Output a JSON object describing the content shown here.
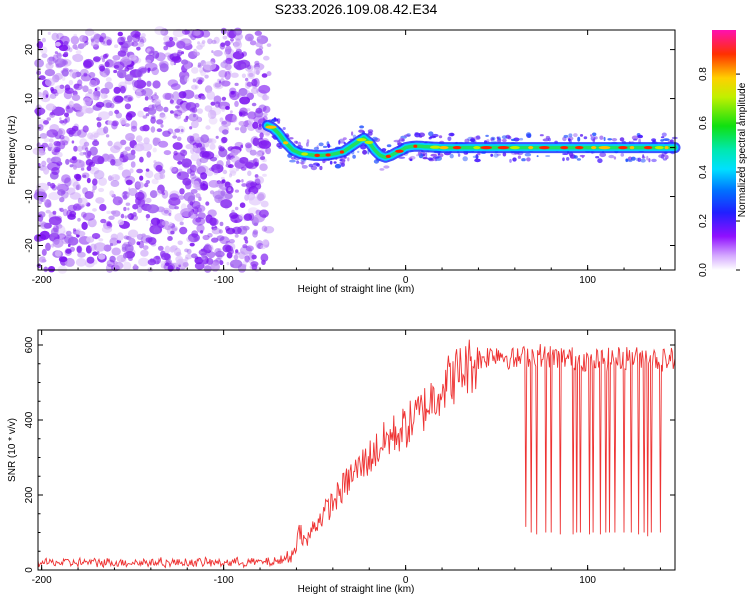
{
  "title": "S233.2026.109.08.42.E34",
  "spectrogram": {
    "type": "heatmap",
    "xlabel": "Height of straight line (km)",
    "ylabel": "Frequency (Hz)",
    "xlim": [
      -202,
      148
    ],
    "ylim": [
      -25,
      24
    ],
    "xticks": [
      -200,
      -100,
      0,
      100
    ],
    "yticks": [
      20,
      10,
      0,
      -10,
      -20
    ],
    "colorbar": {
      "label": "Normalized spectral amplitude",
      "ticks": [
        0.0,
        0.2,
        0.4,
        0.6,
        0.8
      ],
      "range": [
        0,
        0.98
      ]
    },
    "noise_region_km": [
      -202,
      -75
    ],
    "track": {
      "x": [
        -76,
        -73,
        -70,
        -66,
        -62,
        -58,
        -54,
        -50,
        -46,
        -42,
        -38,
        -34,
        -30,
        -26,
        -23,
        -20,
        -17,
        -14,
        -11,
        -8,
        -5,
        -2,
        0,
        3,
        6,
        10,
        15,
        20,
        30,
        40,
        50,
        60,
        70,
        80,
        90,
        100,
        110,
        120,
        130,
        140,
        148
      ],
      "y": [
        4.5,
        4.0,
        3.0,
        1.0,
        -0.5,
        -1.2,
        -1.4,
        -1.6,
        -1.6,
        -1.5,
        -1.2,
        -0.8,
        0.2,
        1.2,
        1.9,
        1.0,
        -0.5,
        -1.6,
        -2.0,
        -1.6,
        -1.0,
        -0.5,
        0.0,
        0.2,
        0.3,
        0.2,
        0.1,
        0.0,
        0.0,
        0.0,
        0.0,
        0.0,
        0.0,
        0.0,
        0.0,
        0.0,
        0.0,
        0.0,
        0.0,
        0.0,
        0.0
      ]
    }
  },
  "snr_chart": {
    "type": "line",
    "xlabel": "Height of straight line (km)",
    "ylabel": "SNR (10 * v/v)",
    "xlim": [
      -202,
      148
    ],
    "ylim": [
      0,
      640
    ],
    "xticks": [
      -200,
      -100,
      0,
      100
    ],
    "yticks": [
      0,
      200,
      400,
      600
    ],
    "color": "#ee3333",
    "trend": {
      "x": [
        -202,
        -150,
        -100,
        -70,
        -62,
        -58,
        -55,
        -50,
        -40,
        -30,
        -20,
        -10,
        0,
        10,
        20,
        30,
        40,
        50,
        60,
        70,
        80,
        90,
        100,
        110,
        120,
        130,
        140,
        148
      ],
      "y": [
        20,
        20,
        20,
        22,
        40,
        110,
        70,
        120,
        180,
        250,
        300,
        350,
        380,
        430,
        490,
        530,
        560,
        580,
        560,
        575,
        570,
        565,
        560,
        560,
        565,
        570,
        560,
        565
      ]
    },
    "dropouts": {
      "x": [
        66,
        69,
        72,
        77,
        80,
        85,
        92,
        94,
        96,
        101,
        103,
        107,
        110,
        112,
        115,
        120,
        124,
        128,
        131,
        133,
        135,
        140
      ],
      "y": [
        115,
        100,
        95,
        100,
        100,
        95,
        95,
        100,
        100,
        95,
        100,
        95,
        100,
        100,
        100,
        100,
        100,
        95,
        100,
        90,
        100,
        100
      ]
    }
  }
}
